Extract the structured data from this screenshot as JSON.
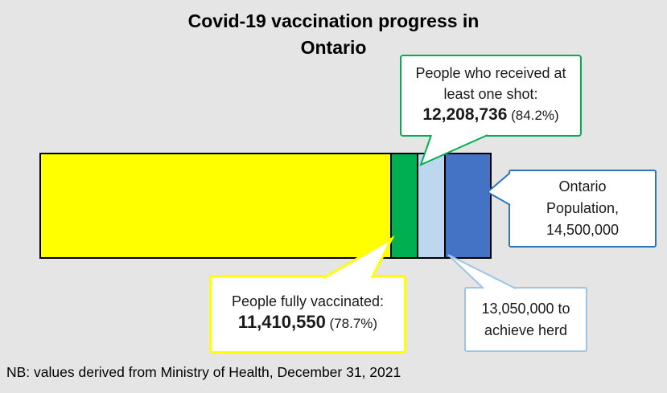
{
  "title": {
    "line1": "Covid-19 vaccination progress in",
    "line2": "Ontario"
  },
  "note": "NB: values derived from Ministry of Health, December 31, 2021",
  "callouts": {
    "one_shot": {
      "line1": "People who received at",
      "line2": "least one shot:",
      "value": "12,208,736",
      "pct": " (84.2%)",
      "border_color": "#00B050"
    },
    "fully_vaccinated": {
      "line1": "People fully vaccinated:",
      "value": "11,410,550",
      "pct": " (78.7%)",
      "border_color": "#FFFF00"
    },
    "population": {
      "line1": "Ontario",
      "line2": "Population,",
      "line3": "14,500,000",
      "border_color": "#2E75B6"
    },
    "herd": {
      "line1": "13,050,000 to",
      "line2": "achieve herd",
      "border_color": "#9DC3E6"
    }
  },
  "chart_data": {
    "type": "bar",
    "subtype": "horizontal-stacked-proportional",
    "title": "Covid-19 vaccination progress in Ontario",
    "total_population": 14500000,
    "milestones": [
      {
        "label": "People fully vaccinated",
        "cumulative": 11410550,
        "pct": "78.7%",
        "color": "#FFFF00"
      },
      {
        "label": "People who received at least one shot",
        "cumulative": 12208736,
        "pct": "84.2%",
        "color": "#00B050"
      },
      {
        "label": "Needed to achieve herd immunity",
        "cumulative": 13050000,
        "pct": "90.0%",
        "color": "#BDD7EE"
      },
      {
        "label": "Ontario Population",
        "cumulative": 14500000,
        "pct": "100%",
        "color": "#4472C4"
      }
    ],
    "legend_position": "callouts",
    "grid": false,
    "source_note": "NB: values derived from Ministry of Health, December 31, 2021"
  },
  "colors": {
    "background": "#E6E5E5",
    "bar_outline": "#000000",
    "green": "#00B050",
    "yellow": "#FFFF00",
    "light_blue": "#BDD7EE",
    "blue": "#4472C4",
    "population_border": "#2E75B6",
    "herd_border": "#9DC3E6"
  }
}
